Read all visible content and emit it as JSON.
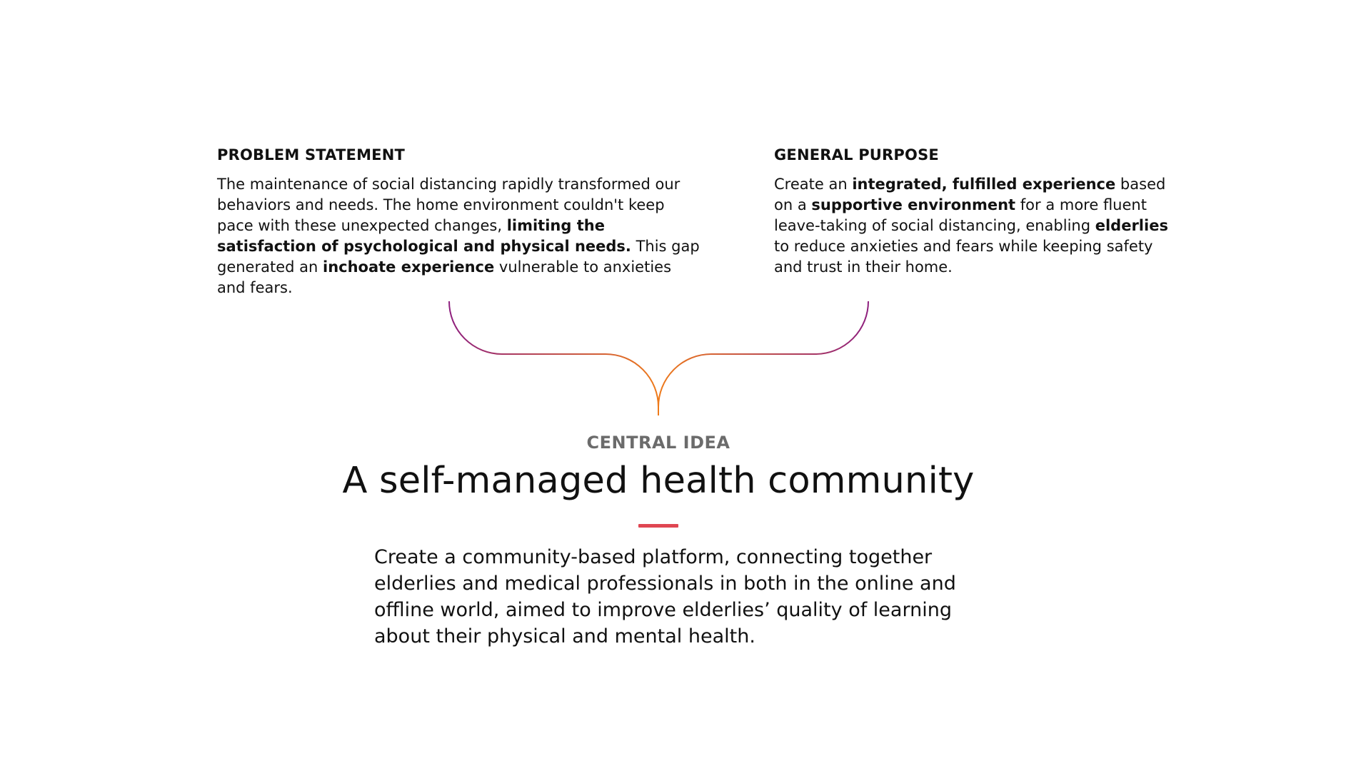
{
  "problem": {
    "heading": "PROBLEM STATEMENT",
    "segments": [
      {
        "text": "The maintenance of social distancing rapidly transformed our behaviors and needs. The home environment couldn't keep pace with these unexpected changes, ",
        "bold": false
      },
      {
        "text": "limiting the satisfaction of psychological and physical needs.",
        "bold": true
      },
      {
        "text": " This gap generated an ",
        "bold": false
      },
      {
        "text": "inchoate experience",
        "bold": true
      },
      {
        "text": " vulnerable to anxieties and fears.",
        "bold": false
      }
    ]
  },
  "purpose": {
    "heading": "GENERAL PURPOSE",
    "segments": [
      {
        "text": "Create an ",
        "bold": false
      },
      {
        "text": "integrated, fulfilled experience",
        "bold": true
      },
      {
        "text": " based on a ",
        "bold": false
      },
      {
        "text": "supportive environment",
        "bold": true
      },
      {
        "text": " for a more fluent leave-taking of social distancing, enabling ",
        "bold": false
      },
      {
        "text": "elderlies",
        "bold": true
      },
      {
        "text": " to reduce anxieties and fears while keeping safety and trust in their home.",
        "bold": false
      }
    ]
  },
  "central": {
    "label": "CENTRAL IDEA",
    "title": "A self-managed health community",
    "description": "Create a community-based platform, connecting together elderlies and medical professionals in both in the online and offline world, aimed to improve elderlies’ quality of learning about their physical and mental health."
  },
  "colors": {
    "connector_start": "#8e1f7e",
    "connector_end": "#ee7a1a",
    "divider": "#e04652",
    "label_gray": "#6b6b6b"
  }
}
